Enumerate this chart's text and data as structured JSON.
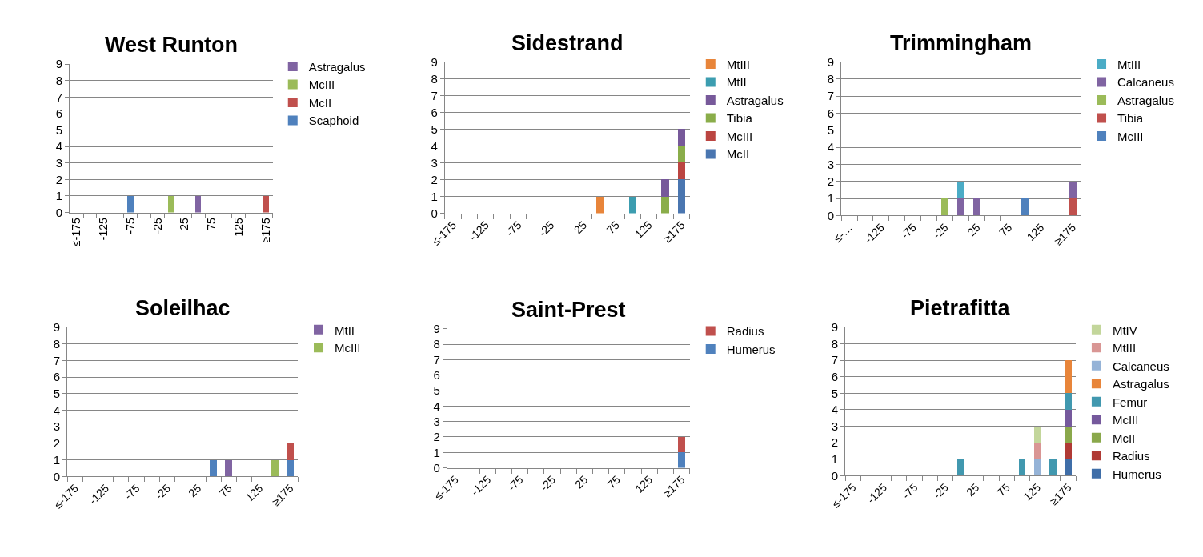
{
  "chart_data": [
    {
      "type": "bar",
      "title": "West Runton",
      "stacked": true,
      "grid": "y",
      "legend": "right",
      "ylim": [
        0,
        9
      ],
      "yticks": [
        0,
        1,
        2,
        3,
        4,
        5,
        6,
        7,
        8,
        9
      ],
      "categories": [
        "≤-175",
        null,
        "-125",
        null,
        "-75",
        null,
        "-25",
        null,
        "25",
        null,
        "75",
        null,
        "125",
        null,
        "≥175"
      ],
      "series": [
        {
          "name": "Scaphoid",
          "color": "#4f81bd",
          "values": [
            0,
            0,
            0,
            0,
            1,
            0,
            0,
            0,
            0,
            0,
            0,
            0,
            0,
            0,
            0
          ]
        },
        {
          "name": "McII",
          "color": "#c0504d",
          "values": [
            0,
            0,
            0,
            0,
            0,
            0,
            0,
            0,
            0,
            0,
            0,
            0,
            0,
            0,
            1
          ]
        },
        {
          "name": "McIII",
          "color": "#9bbb59",
          "values": [
            0,
            0,
            0,
            0,
            0,
            0,
            0,
            1,
            0,
            0,
            0,
            0,
            0,
            0,
            0
          ]
        },
        {
          "name": "Astragalus",
          "color": "#8064a2",
          "values": [
            0,
            0,
            0,
            0,
            0,
            0,
            0,
            0,
            0,
            1,
            0,
            0,
            0,
            0,
            0
          ]
        }
      ]
    },
    {
      "type": "bar",
      "title": "Sidestrand",
      "stacked": true,
      "grid": "y",
      "legend": "right",
      "ylim": [
        0,
        9
      ],
      "yticks": [
        0,
        1,
        2,
        3,
        4,
        5,
        6,
        7,
        8,
        9
      ],
      "categories": [
        "≤-175",
        null,
        "-125",
        null,
        "-75",
        null,
        "-25",
        null,
        "25",
        null,
        "75",
        null,
        "125",
        null,
        "≥175"
      ],
      "series": [
        {
          "name": "McII",
          "color": "#4a76b0",
          "values": [
            0,
            0,
            0,
            0,
            0,
            0,
            0,
            0,
            0,
            0,
            0,
            0,
            0,
            0,
            2
          ]
        },
        {
          "name": "McIII",
          "color": "#bb4541",
          "values": [
            0,
            0,
            0,
            0,
            0,
            0,
            0,
            0,
            0,
            0,
            0,
            0,
            0,
            0,
            1
          ]
        },
        {
          "name": "Tibia",
          "color": "#8aad4a",
          "values": [
            0,
            0,
            0,
            0,
            0,
            0,
            0,
            0,
            0,
            0,
            0,
            0,
            0,
            1,
            1
          ]
        },
        {
          "name": "Astragalus",
          "color": "#77599a",
          "values": [
            0,
            0,
            0,
            0,
            0,
            0,
            0,
            0,
            0,
            0,
            0,
            0,
            0,
            1,
            1
          ]
        },
        {
          "name": "MtII",
          "color": "#3c9db0",
          "values": [
            0,
            0,
            0,
            0,
            0,
            0,
            0,
            0,
            0,
            0,
            0,
            1,
            0,
            0,
            0
          ]
        },
        {
          "name": "MtIII",
          "color": "#e8853a",
          "values": [
            0,
            0,
            0,
            0,
            0,
            0,
            0,
            0,
            0,
            1,
            0,
            0,
            0,
            0,
            0
          ]
        }
      ]
    },
    {
      "type": "bar",
      "title": "Trimmingham",
      "stacked": true,
      "grid": "y",
      "legend": "right",
      "ylim": [
        0,
        9
      ],
      "yticks": [
        0,
        1,
        2,
        3,
        4,
        5,
        6,
        7,
        8,
        9
      ],
      "categories": [
        "≤-…",
        null,
        "-125",
        null,
        "-75",
        null,
        "-25",
        null,
        "25",
        null,
        "75",
        null,
        "125",
        null,
        "≥175"
      ],
      "series": [
        {
          "name": "McIII",
          "color": "#4f81bd",
          "values": [
            0,
            0,
            0,
            0,
            0,
            0,
            0,
            0,
            0,
            0,
            0,
            1,
            0,
            0,
            0
          ]
        },
        {
          "name": "Tibia",
          "color": "#c0504d",
          "values": [
            0,
            0,
            0,
            0,
            0,
            0,
            0,
            0,
            0,
            0,
            0,
            0,
            0,
            0,
            1
          ]
        },
        {
          "name": "Astragalus",
          "color": "#9bbb59",
          "values": [
            0,
            0,
            0,
            0,
            0,
            0,
            1,
            0,
            0,
            0,
            0,
            0,
            0,
            0,
            0
          ]
        },
        {
          "name": "Calcaneus",
          "color": "#8064a2",
          "values": [
            0,
            0,
            0,
            0,
            0,
            0,
            0,
            1,
            1,
            0,
            0,
            0,
            0,
            0,
            1
          ]
        },
        {
          "name": "MtIII",
          "color": "#4bacc6",
          "values": [
            0,
            0,
            0,
            0,
            0,
            0,
            0,
            1,
            0,
            0,
            0,
            0,
            0,
            0,
            0
          ]
        }
      ]
    },
    {
      "type": "bar",
      "title": "Soleilhac",
      "stacked": true,
      "grid": "y",
      "legend": "right",
      "ylim": [
        0,
        9
      ],
      "yticks": [
        0,
        1,
        2,
        3,
        4,
        5,
        6,
        7,
        8,
        9
      ],
      "categories": [
        "≤-175",
        null,
        "-125",
        null,
        "-75",
        null,
        "-25",
        null,
        "25",
        null,
        "75",
        null,
        "125",
        null,
        "≥175"
      ],
      "series": [
        {
          "color": "#4f81bd",
          "values": [
            0,
            0,
            0,
            0,
            0,
            0,
            0,
            0,
            0,
            1,
            0,
            0,
            0,
            0,
            1
          ]
        },
        {
          "name": "McIII",
          "color": "#9bbb59",
          "values": [
            0,
            0,
            0,
            0,
            0,
            0,
            0,
            0,
            0,
            0,
            0,
            0,
            0,
            1,
            0
          ]
        },
        {
          "color": "#c0504d",
          "values": [
            0,
            0,
            0,
            0,
            0,
            0,
            0,
            0,
            0,
            0,
            0,
            0,
            0,
            0,
            1
          ]
        },
        {
          "name": "MtII",
          "color": "#8064a2",
          "values": [
            0,
            0,
            0,
            0,
            0,
            0,
            0,
            0,
            0,
            0,
            1,
            0,
            0,
            0,
            0
          ]
        }
      ]
    },
    {
      "type": "bar",
      "title": "Saint-Prest",
      "stacked": true,
      "grid": "y",
      "legend": "right",
      "ylim": [
        0,
        9
      ],
      "yticks": [
        0,
        1,
        2,
        3,
        4,
        5,
        6,
        7,
        8,
        9
      ],
      "categories": [
        "≤-175",
        null,
        "-125",
        null,
        "-75",
        null,
        "-25",
        null,
        "25",
        null,
        "75",
        null,
        "125",
        null,
        "≥175"
      ],
      "series": [
        {
          "name": "Humerus",
          "color": "#4f81bd",
          "values": [
            0,
            0,
            0,
            0,
            0,
            0,
            0,
            0,
            0,
            0,
            0,
            0,
            0,
            0,
            1
          ]
        },
        {
          "name": "Radius",
          "color": "#c0504d",
          "values": [
            0,
            0,
            0,
            0,
            0,
            0,
            0,
            0,
            0,
            0,
            0,
            0,
            0,
            0,
            1
          ]
        }
      ]
    },
    {
      "type": "bar",
      "title": "Pietrafitta",
      "stacked": true,
      "grid": "y",
      "legend": "right",
      "ylim": [
        0,
        9
      ],
      "yticks": [
        0,
        1,
        2,
        3,
        4,
        5,
        6,
        7,
        8,
        9
      ],
      "categories": [
        "≤-175",
        null,
        "-125",
        null,
        "-75",
        null,
        "-25",
        null,
        "25",
        null,
        "75",
        null,
        "125",
        null,
        "≥175"
      ],
      "series": [
        {
          "name": "Humerus",
          "color": "#3f6ea8",
          "values": [
            0,
            0,
            0,
            0,
            0,
            0,
            0,
            0,
            0,
            0,
            0,
            0,
            0,
            0,
            1
          ]
        },
        {
          "name": "Radius",
          "color": "#b03a35",
          "values": [
            0,
            0,
            0,
            0,
            0,
            0,
            0,
            0,
            0,
            0,
            0,
            0,
            0,
            0,
            1
          ]
        },
        {
          "name": "McII",
          "color": "#8aa84b",
          "values": [
            0,
            0,
            0,
            0,
            0,
            0,
            0,
            0,
            0,
            0,
            0,
            0,
            0,
            0,
            1
          ]
        },
        {
          "name": "McIII",
          "color": "#75599c",
          "values": [
            0,
            0,
            0,
            0,
            0,
            0,
            0,
            0,
            0,
            0,
            0,
            0,
            0,
            0,
            1
          ]
        },
        {
          "name": "Femur",
          "color": "#4198af",
          "values": [
            0,
            0,
            0,
            0,
            0,
            0,
            0,
            1,
            0,
            0,
            0,
            1,
            0,
            1,
            1
          ]
        },
        {
          "name": "Astragalus",
          "color": "#e8853a",
          "values": [
            0,
            0,
            0,
            0,
            0,
            0,
            0,
            0,
            0,
            0,
            0,
            0,
            0,
            0,
            2
          ]
        },
        {
          "name": "Calcaneus",
          "color": "#95b3d7",
          "values": [
            0,
            0,
            0,
            0,
            0,
            0,
            0,
            0,
            0,
            0,
            0,
            0,
            1,
            0,
            0
          ]
        },
        {
          "name": "MtIII",
          "color": "#d99694",
          "values": [
            0,
            0,
            0,
            0,
            0,
            0,
            0,
            0,
            0,
            0,
            0,
            0,
            1,
            0,
            0
          ]
        },
        {
          "name": "MtIV",
          "color": "#c3d69b",
          "values": [
            0,
            0,
            0,
            0,
            0,
            0,
            0,
            0,
            0,
            0,
            0,
            0,
            1,
            0,
            0
          ]
        }
      ]
    }
  ]
}
